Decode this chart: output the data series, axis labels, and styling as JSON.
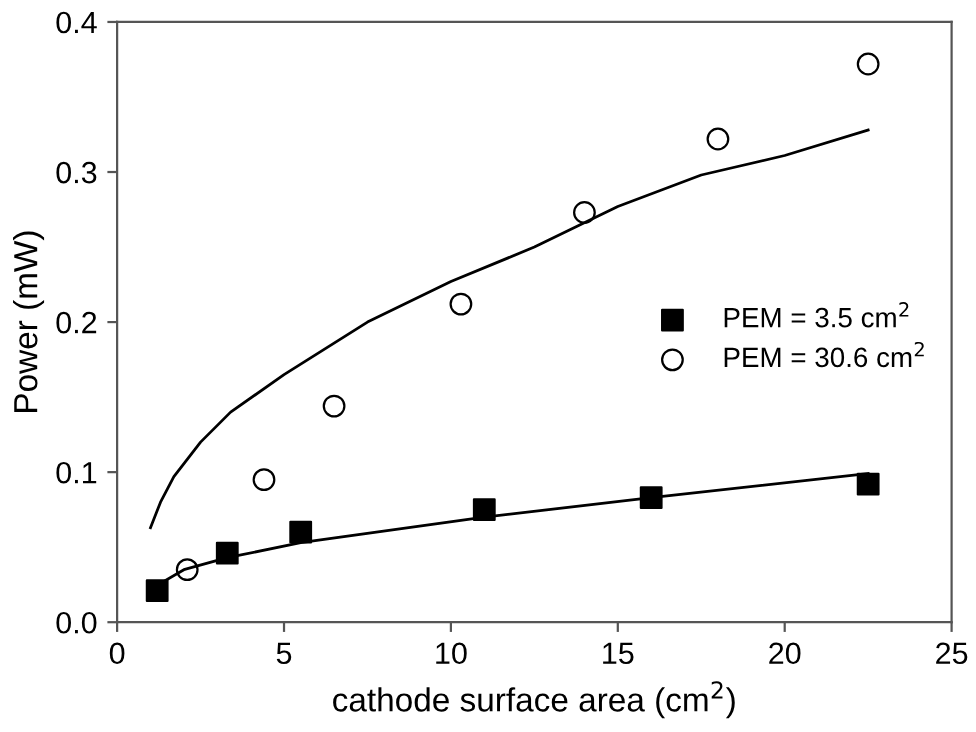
{
  "chart_data": {
    "type": "scatter",
    "xlabel": "cathode surface area (cm$^{2}$)",
    "ylabel": "Power (mW)",
    "xlim": [
      0,
      25
    ],
    "xticks": [
      0,
      5,
      10,
      15,
      20,
      25
    ],
    "ylim": [
      0,
      0.4
    ],
    "yticks": [
      {
        "value": 0,
        "label": "0.0"
      },
      0.1,
      0.2,
      0.3,
      0.4
    ],
    "grid": false,
    "legend": "right",
    "series": [
      {
        "name": "PEM = 3.5 cm$^{2}$",
        "color": "#000000",
        "marker": "square",
        "x": [
          1.2,
          3.3,
          5.5,
          11,
          16,
          22.5
        ],
        "values": [
          0.021,
          0.046,
          0.06,
          0.075,
          0.083,
          0.092
        ]
      },
      {
        "name": "PEM = 30.6 cm$^{2}$",
        "color": "#000000",
        "marker": "circle",
        "x": [
          2.1,
          4.4,
          6.5,
          10.3,
          14,
          18,
          22.5
        ],
        "values": [
          0.035,
          0.095,
          0.144,
          0.212,
          0.273,
          0.322,
          0.372
        ]
      },
      {
        "type": "line",
        "color": "#000000",
        "marker": "none",
        "x": [
          1,
          1.3,
          1.7,
          2.5,
          3.4,
          5,
          7.5,
          10,
          12.5,
          15,
          17.5,
          20,
          22.5
        ],
        "values": [
          0.063,
          0.08,
          0.097,
          0.12,
          0.14,
          0.165,
          0.2,
          0.227,
          0.25,
          0.277,
          0.298,
          0.311,
          0.328
        ]
      },
      {
        "type": "line",
        "color": "#000000",
        "marker": "none",
        "x": [
          1,
          2,
          3.3,
          5.5,
          11,
          16,
          22.5
        ],
        "values": [
          0.022,
          0.035,
          0.043,
          0.053,
          0.07,
          0.083,
          0.099
        ]
      }
    ]
  }
}
